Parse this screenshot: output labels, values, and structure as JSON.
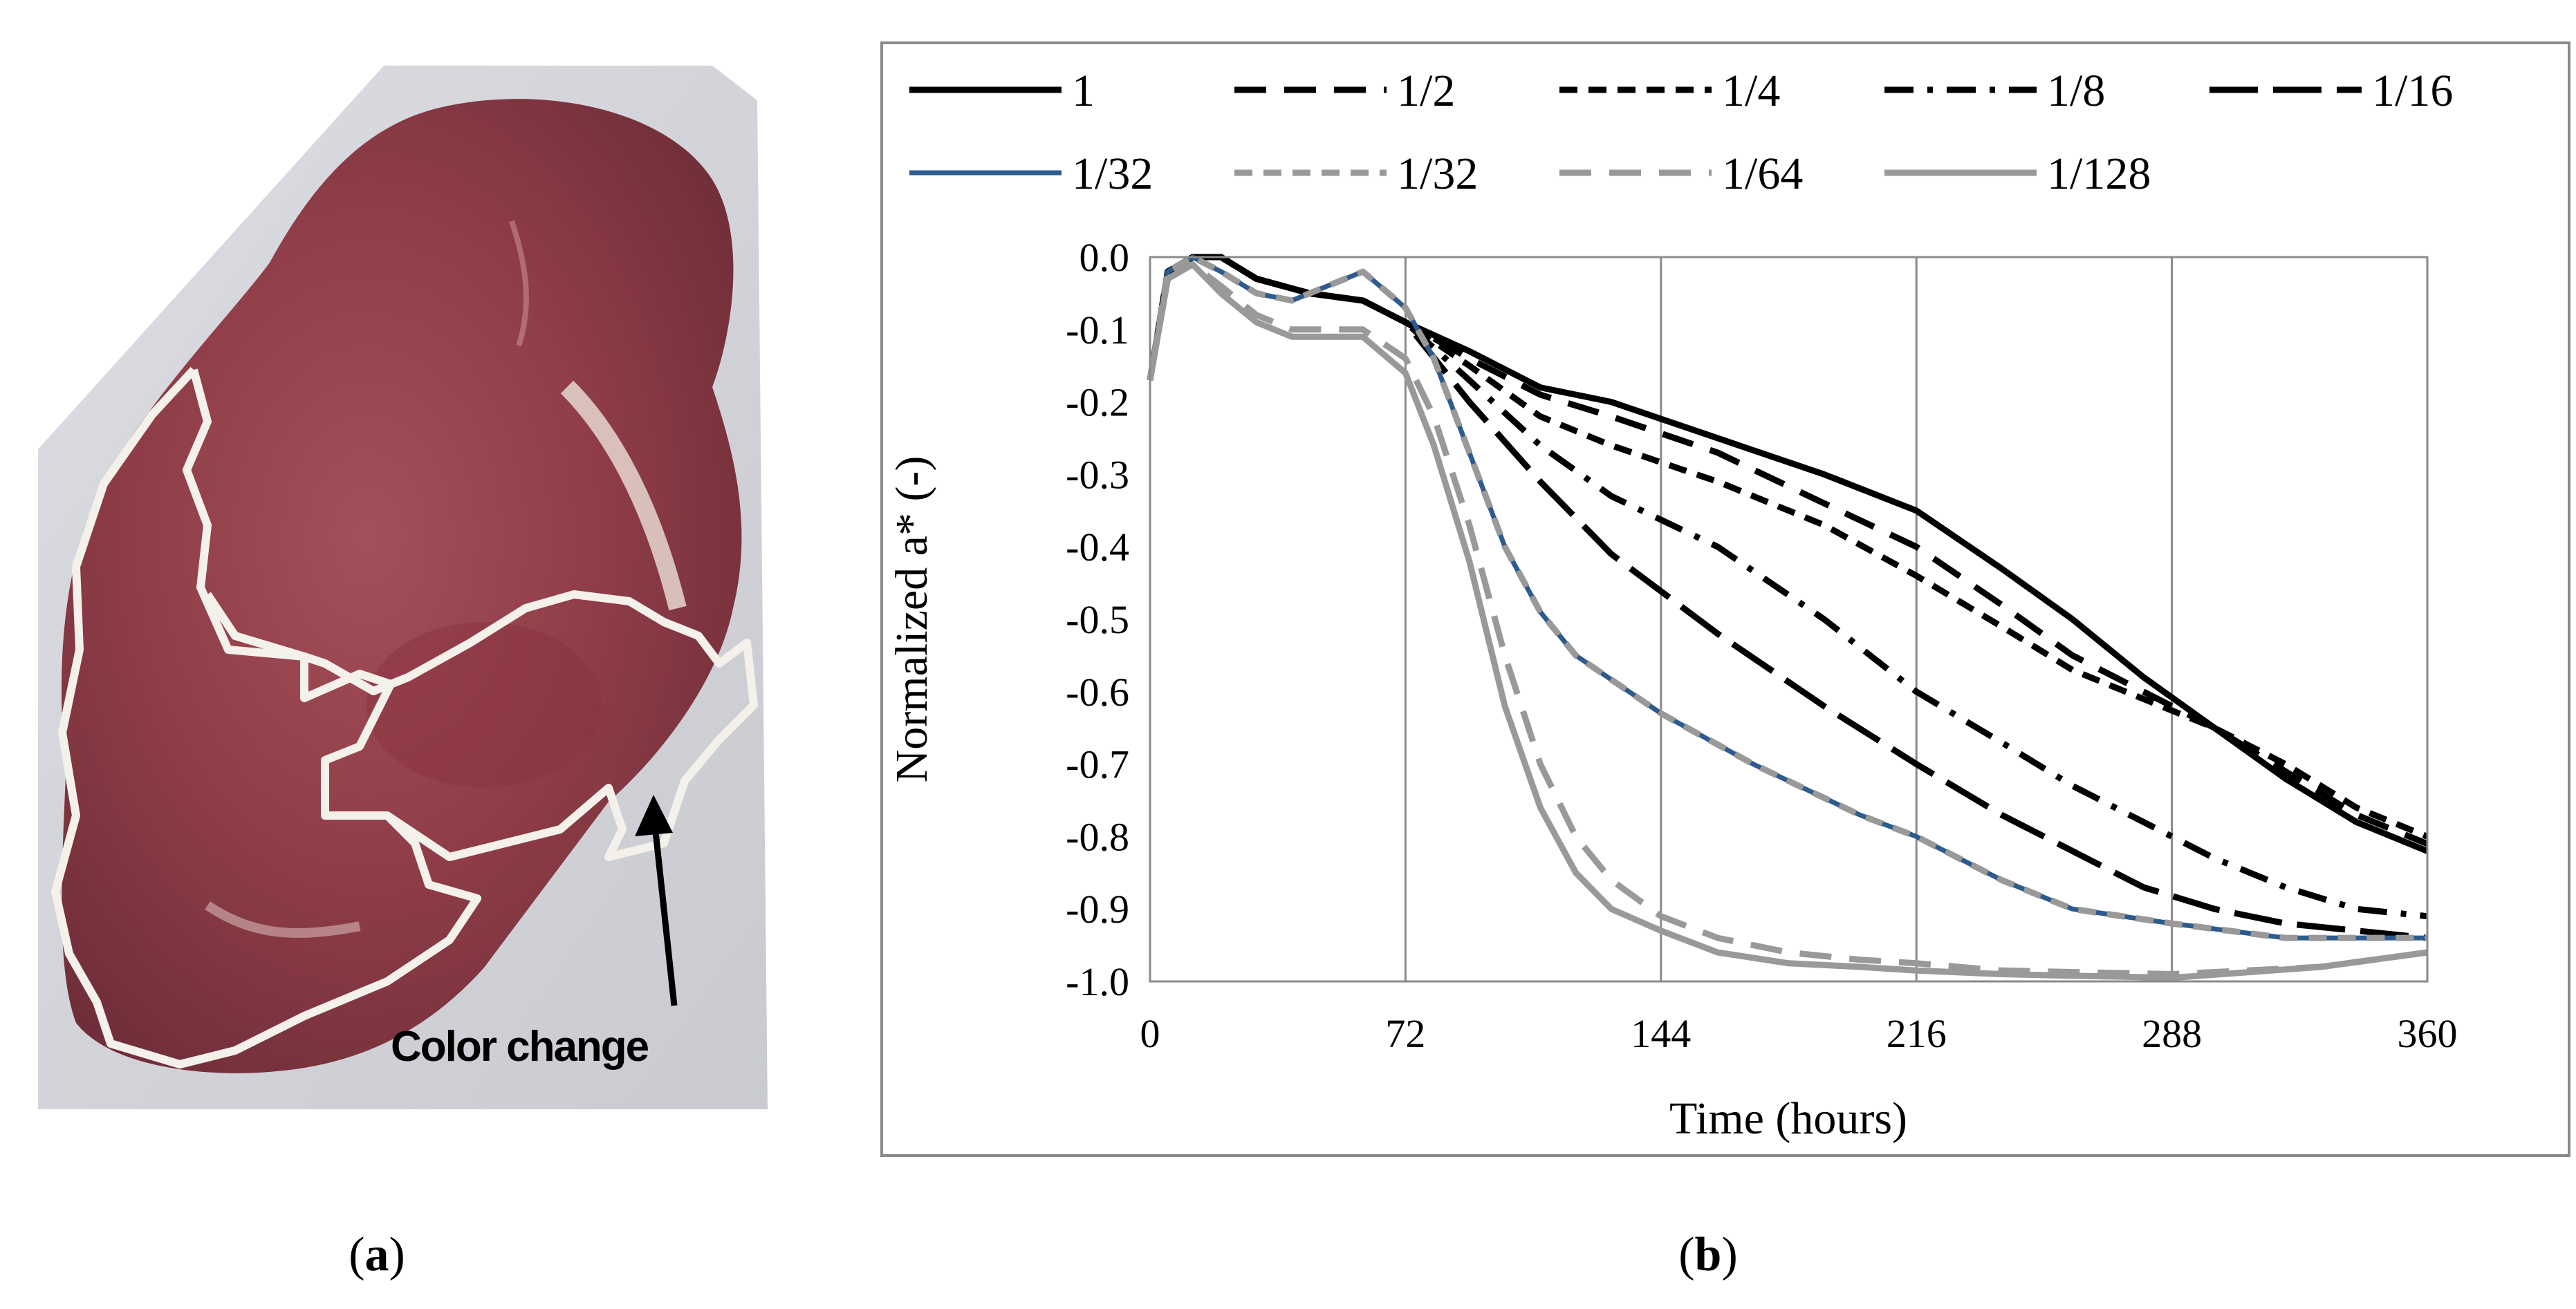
{
  "figure": {
    "panel_a": {
      "caption_prefix": "(",
      "caption_letter": "a",
      "caption_suffix": ")",
      "annotation": "Color change"
    },
    "panel_b": {
      "caption_prefix": "(",
      "caption_letter": "b",
      "caption_suffix": ")"
    }
  },
  "chart_data": {
    "type": "line",
    "title": "",
    "xlabel": "Time (hours)",
    "ylabel": "Normalized a* (-)",
    "xlim": [
      0,
      360
    ],
    "ylim": [
      -1.0,
      0.0
    ],
    "xticks": [
      0,
      72,
      144,
      216,
      288,
      360
    ],
    "yticks": [
      0.0,
      -0.1,
      -0.2,
      -0.3,
      -0.4,
      -0.5,
      -0.6,
      -0.7,
      -0.8,
      -0.9,
      -1.0
    ],
    "ytick_labels": [
      "0.0",
      "-0.1",
      "-0.2",
      "-0.3",
      "-0.4",
      "-0.5",
      "-0.6",
      "-0.7",
      "-0.8",
      "-0.9",
      "-1.0"
    ],
    "grid": "vertical",
    "legend_position": "top",
    "series": [
      {
        "name": "1",
        "color": "#000000",
        "dash": "solid",
        "x": [
          0,
          5,
          12,
          20,
          30,
          45,
          60,
          72,
          90,
          110,
          130,
          160,
          190,
          216,
          240,
          260,
          280,
          300,
          320,
          340,
          360
        ],
        "y": [
          -0.17,
          -0.02,
          0.0,
          0.0,
          -0.03,
          -0.05,
          -0.06,
          -0.09,
          -0.13,
          -0.18,
          -0.2,
          -0.25,
          -0.3,
          -0.35,
          -0.43,
          -0.5,
          -0.58,
          -0.65,
          -0.72,
          -0.78,
          -0.82
        ]
      },
      {
        "name": "1/2",
        "color": "#000000",
        "dash": "dash",
        "x": [
          0,
          5,
          12,
          20,
          30,
          45,
          60,
          72,
          90,
          110,
          130,
          160,
          190,
          216,
          240,
          260,
          280,
          300,
          320,
          340,
          360
        ],
        "y": [
          -0.17,
          -0.02,
          0.0,
          0.0,
          -0.03,
          -0.05,
          -0.06,
          -0.09,
          -0.14,
          -0.19,
          -0.22,
          -0.27,
          -0.34,
          -0.4,
          -0.48,
          -0.55,
          -0.6,
          -0.65,
          -0.71,
          -0.77,
          -0.81
        ]
      },
      {
        "name": "1/4",
        "color": "#000000",
        "dash": "shortdash",
        "x": [
          0,
          5,
          12,
          20,
          30,
          45,
          60,
          72,
          90,
          110,
          130,
          160,
          190,
          216,
          240,
          260,
          280,
          300,
          320,
          340,
          360
        ],
        "y": [
          -0.17,
          -0.02,
          0.0,
          0.0,
          -0.03,
          -0.05,
          -0.06,
          -0.09,
          -0.15,
          -0.22,
          -0.26,
          -0.31,
          -0.37,
          -0.44,
          -0.51,
          -0.57,
          -0.61,
          -0.65,
          -0.7,
          -0.76,
          -0.8
        ]
      },
      {
        "name": "1/8",
        "color": "#000000",
        "dash": "dashdot",
        "x": [
          0,
          5,
          12,
          20,
          30,
          45,
          60,
          72,
          90,
          110,
          130,
          160,
          190,
          216,
          240,
          260,
          280,
          300,
          320,
          340,
          360
        ],
        "y": [
          -0.17,
          -0.02,
          0.0,
          0.0,
          -0.03,
          -0.05,
          -0.06,
          -0.09,
          -0.17,
          -0.26,
          -0.33,
          -0.4,
          -0.5,
          -0.6,
          -0.67,
          -0.73,
          -0.78,
          -0.83,
          -0.87,
          -0.9,
          -0.91
        ]
      },
      {
        "name": "1/16",
        "color": "#000000",
        "dash": "longdash",
        "x": [
          0,
          5,
          12,
          20,
          30,
          45,
          60,
          72,
          90,
          110,
          130,
          160,
          190,
          216,
          240,
          260,
          280,
          300,
          320,
          340,
          360
        ],
        "y": [
          -0.17,
          -0.02,
          0.0,
          0.0,
          -0.03,
          -0.05,
          -0.06,
          -0.09,
          -0.2,
          -0.31,
          -0.41,
          -0.52,
          -0.62,
          -0.7,
          -0.77,
          -0.82,
          -0.87,
          -0.9,
          -0.92,
          -0.93,
          -0.94
        ]
      },
      {
        "name": "1/32",
        "color": "#2e5b8e",
        "dash": "solid",
        "x": [
          0,
          5,
          12,
          20,
          30,
          40,
          50,
          60,
          72,
          80,
          90,
          100,
          110,
          120,
          144,
          170,
          200,
          216,
          240,
          260,
          288,
          320,
          360
        ],
        "y": [
          -0.17,
          -0.02,
          0.0,
          -0.02,
          -0.05,
          -0.06,
          -0.04,
          -0.02,
          -0.07,
          -0.14,
          -0.27,
          -0.4,
          -0.49,
          -0.55,
          -0.63,
          -0.7,
          -0.77,
          -0.8,
          -0.86,
          -0.9,
          -0.92,
          -0.94,
          -0.94
        ]
      },
      {
        "name": "1/32",
        "color": "#999999",
        "dash": "shortdash",
        "x": [
          0,
          5,
          12,
          20,
          30,
          40,
          50,
          60,
          72,
          80,
          90,
          100,
          110,
          120,
          144,
          170,
          200,
          216,
          240,
          260,
          288,
          320,
          360
        ],
        "y": [
          -0.17,
          -0.02,
          0.0,
          -0.02,
          -0.05,
          -0.06,
          -0.04,
          -0.02,
          -0.07,
          -0.14,
          -0.27,
          -0.4,
          -0.49,
          -0.55,
          -0.63,
          -0.7,
          -0.77,
          -0.8,
          -0.86,
          -0.9,
          -0.92,
          -0.94,
          -0.94
        ]
      },
      {
        "name": "1/64",
        "color": "#999999",
        "dash": "dash",
        "x": [
          0,
          5,
          12,
          20,
          30,
          40,
          50,
          60,
          72,
          80,
          90,
          100,
          110,
          120,
          130,
          144,
          160,
          180,
          200,
          216,
          240,
          288,
          330,
          360
        ],
        "y": [
          -0.17,
          -0.03,
          -0.01,
          -0.04,
          -0.08,
          -0.1,
          -0.1,
          -0.1,
          -0.14,
          -0.22,
          -0.37,
          -0.55,
          -0.7,
          -0.8,
          -0.86,
          -0.91,
          -0.94,
          -0.96,
          -0.97,
          -0.975,
          -0.985,
          -0.99,
          -0.98,
          -0.96
        ]
      },
      {
        "name": "1/128",
        "color": "#999999",
        "dash": "solid",
        "x": [
          0,
          5,
          12,
          20,
          30,
          40,
          50,
          60,
          72,
          80,
          90,
          100,
          110,
          120,
          130,
          144,
          160,
          180,
          200,
          216,
          240,
          288,
          330,
          360
        ],
        "y": [
          -0.17,
          -0.03,
          -0.01,
          -0.05,
          -0.09,
          -0.11,
          -0.11,
          -0.11,
          -0.16,
          -0.26,
          -0.42,
          -0.62,
          -0.76,
          -0.85,
          -0.9,
          -0.93,
          -0.96,
          -0.975,
          -0.98,
          -0.985,
          -0.99,
          -0.995,
          -0.98,
          -0.96
        ]
      }
    ]
  }
}
